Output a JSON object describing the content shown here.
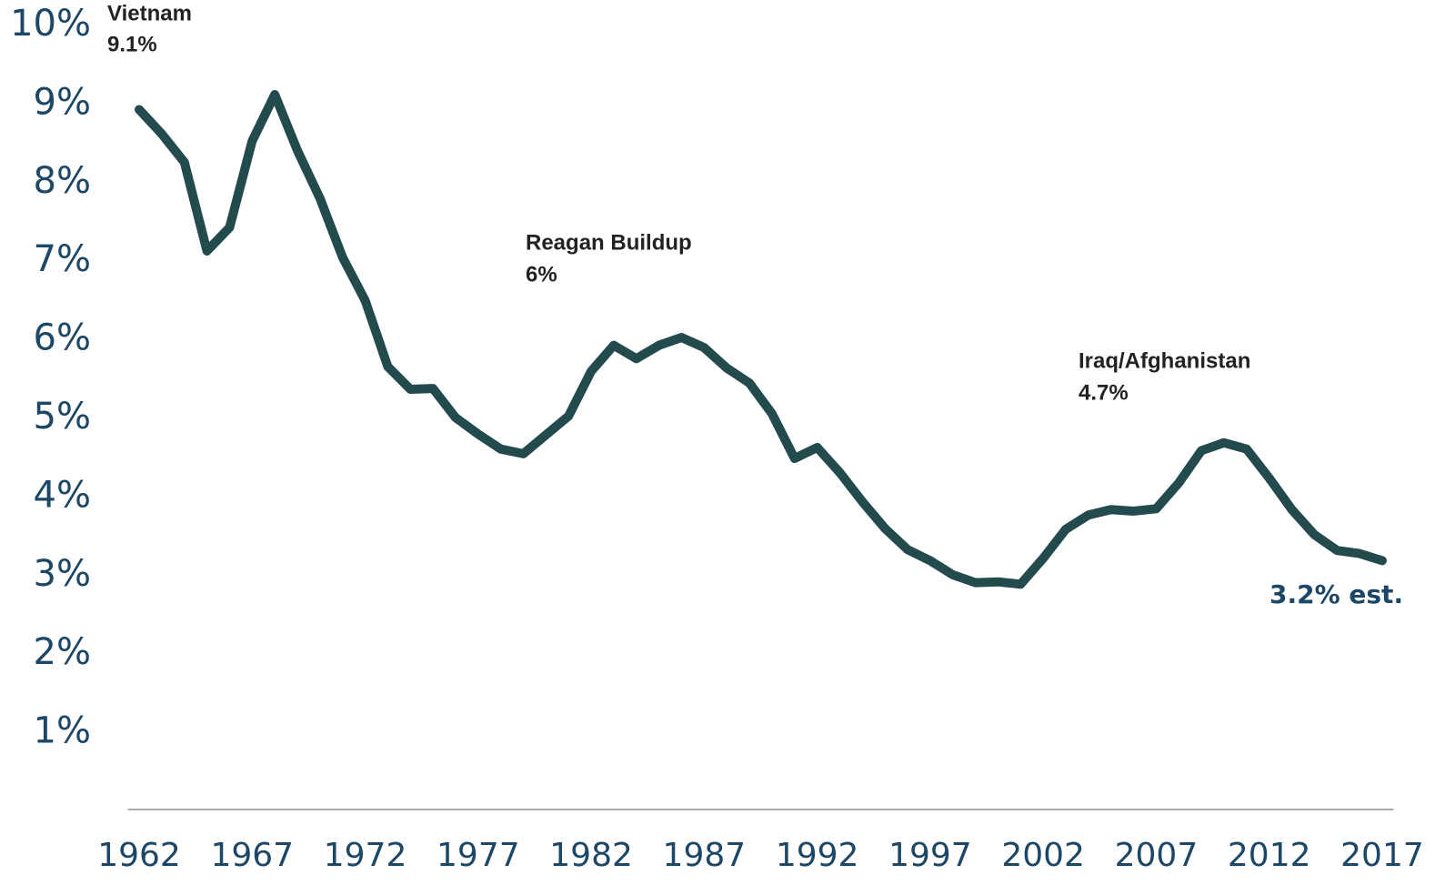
{
  "chart_data": {
    "type": "line",
    "x": [
      1962,
      1963,
      1964,
      1965,
      1966,
      1967,
      1968,
      1969,
      1970,
      1971,
      1972,
      1973,
      1974,
      1975,
      1976,
      1977,
      1978,
      1979,
      1980,
      1981,
      1982,
      1983,
      1984,
      1985,
      1986,
      1987,
      1988,
      1989,
      1990,
      1991,
      1992,
      1993,
      1994,
      1995,
      1996,
      1997,
      1998,
      1999,
      2000,
      2001,
      2002,
      2003,
      2004,
      2005,
      2006,
      2007,
      2008,
      2009,
      2010,
      2011,
      2012,
      2013,
      2014,
      2015,
      2016,
      2017
    ],
    "series": [
      {
        "color": "#234a4d",
        "values": [
          8.93,
          8.62,
          8.26,
          7.13,
          7.43,
          8.53,
          9.12,
          8.41,
          7.8,
          7.05,
          6.5,
          5.66,
          5.37,
          5.38,
          5.01,
          4.8,
          4.61,
          4.55,
          4.79,
          5.03,
          5.6,
          5.93,
          5.76,
          5.93,
          6.03,
          5.9,
          5.64,
          5.45,
          5.06,
          4.49,
          4.63,
          4.31,
          3.94,
          3.6,
          3.33,
          3.19,
          3.01,
          2.91,
          2.92,
          2.89,
          3.22,
          3.59,
          3.77,
          3.84,
          3.82,
          3.85,
          4.18,
          4.59,
          4.69,
          4.61,
          4.24,
          3.84,
          3.52,
          3.32,
          3.28,
          3.19
        ]
      }
    ],
    "xlim": [
      1961.5,
      2017.5
    ],
    "xticks": [
      1962,
      1967,
      1972,
      1977,
      1982,
      1987,
      1992,
      1997,
      2002,
      2007,
      2012,
      2017
    ],
    "ylim": [
      0,
      10
    ],
    "yticks": [
      {
        "value": 1,
        "label": "1%"
      },
      {
        "value": 2,
        "label": "2%"
      },
      {
        "value": 3,
        "label": "3%"
      },
      {
        "value": 4,
        "label": "4%"
      },
      {
        "value": 5,
        "label": "5%"
      },
      {
        "value": 6,
        "label": "6%"
      },
      {
        "value": 7,
        "label": "7%"
      },
      {
        "value": 8,
        "label": "8%"
      },
      {
        "value": 9,
        "label": "9%"
      },
      {
        "value": 10,
        "label": "10%"
      }
    ],
    "annotations": [
      {
        "title": "Vietnam",
        "text": "9.1%"
      },
      {
        "title": "Reagan Buildup",
        "text": "6%"
      },
      {
        "title": "Iraq/Afghanistan",
        "text": "4.7%"
      },
      {
        "text": "3.2% est."
      }
    ]
  }
}
